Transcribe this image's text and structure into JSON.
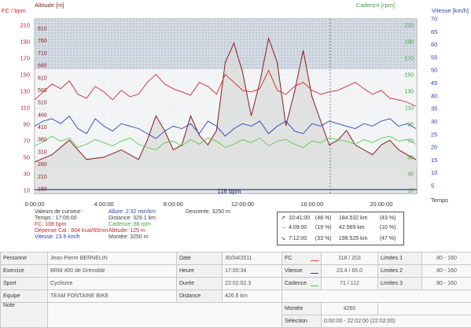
{
  "axes": {
    "left_title": "FC / bpm",
    "left_title2": "Altitude [m]",
    "right_title": "Cadence [rpm]",
    "right_title2": "Vitesse [km/h]",
    "x_title": "Temps",
    "left_ticks": [
      "210",
      "190",
      "170",
      "150",
      "130",
      "110",
      "90",
      "70",
      "50",
      "30",
      "10"
    ],
    "alt_ticks": [
      "810",
      "760",
      "710",
      "660",
      "610",
      "560",
      "510",
      "460",
      "410",
      "360",
      "310",
      "260",
      "210",
      "160"
    ],
    "right_ticks": [
      "70",
      "65",
      "60",
      "55",
      "50",
      "45",
      "40",
      "35",
      "30",
      "25",
      "20",
      "15",
      "10",
      "5"
    ],
    "cad_ticks": [
      "210",
      "190",
      "170",
      "150",
      "130",
      "110",
      "90",
      "70",
      "50",
      "30",
      "10"
    ],
    "x_ticks": [
      "0:00:00",
      "4:00:00",
      "8:00:00",
      "12:00:00",
      "16:00:00",
      "20:00:00"
    ],
    "limit_label": "118 bpm"
  },
  "chart_data": {
    "type": "line",
    "x_unit": "hours",
    "x_range": [
      0,
      22.05
    ],
    "fc_range": [
      0,
      220
    ],
    "speed_range": [
      0,
      70
    ],
    "series": [
      {
        "name": "FC",
        "color": "#d12a2a",
        "x": [
          0,
          0.5,
          1,
          1.5,
          2,
          2.5,
          3,
          3.5,
          4,
          4.5,
          5,
          5.5,
          6,
          6.5,
          7,
          7.5,
          8,
          8.5,
          9,
          9.5,
          10,
          10.5,
          11,
          11.5,
          12,
          12.5,
          13,
          13.5,
          14,
          14.5,
          15,
          15.5,
          16,
          16.5,
          17,
          17.5,
          18,
          18.5,
          19,
          19.5,
          20,
          20.5,
          21,
          21.5,
          22
        ],
        "values": [
          118,
          128,
          138,
          132,
          142,
          125,
          120,
          135,
          128,
          118,
          130,
          122,
          125,
          140,
          150,
          138,
          132,
          128,
          124,
          140,
          135,
          125,
          150,
          140,
          130,
          128,
          132,
          155,
          130,
          125,
          135,
          140,
          130,
          125,
          128,
          130,
          135,
          140,
          132,
          125,
          130,
          120,
          118,
          115,
          110
        ]
      },
      {
        "name": "Vitesse",
        "color": "#2c44b0",
        "x": [
          0,
          0.5,
          1,
          1.5,
          2,
          2.5,
          3,
          3.5,
          4,
          4.5,
          5,
          5.5,
          6,
          6.5,
          7,
          7.5,
          8,
          8.5,
          9,
          9.5,
          10,
          10.5,
          11,
          11.5,
          12,
          12.5,
          13,
          13.5,
          14,
          14.5,
          15,
          15.5,
          16,
          16.5,
          17,
          17.5,
          18,
          18.5,
          19,
          19.5,
          20,
          20.5,
          21,
          21.5,
          22
        ],
        "values": [
          27,
          29,
          30,
          28,
          31,
          26,
          24,
          30,
          27,
          25,
          28,
          27,
          26,
          24,
          22,
          25,
          27,
          26,
          28,
          24,
          29,
          27,
          23,
          26,
          28,
          27,
          29,
          24,
          27,
          29,
          25,
          24,
          28,
          27,
          29,
          28,
          27,
          26,
          28,
          27,
          29,
          30,
          27,
          28,
          26
        ]
      },
      {
        "name": "Cadence",
        "color": "#5cc94a",
        "x": [
          0,
          0.5,
          1,
          1.5,
          2,
          2.5,
          3,
          3.5,
          4,
          4.5,
          5,
          5.5,
          6,
          6.5,
          7,
          7.5,
          8,
          8.5,
          9,
          9.5,
          10,
          10.5,
          11,
          11.5,
          12,
          12.5,
          13,
          13.5,
          14,
          14.5,
          15,
          15.5,
          16,
          16.5,
          17,
          17.5,
          18,
          18.5,
          19,
          19.5,
          20,
          20.5,
          21,
          21.5,
          22
        ],
        "values": [
          60,
          65,
          72,
          66,
          70,
          58,
          62,
          68,
          64,
          60,
          66,
          70,
          62,
          58,
          55,
          64,
          66,
          60,
          68,
          62,
          70,
          66,
          58,
          62,
          68,
          64,
          70,
          60,
          66,
          68,
          62,
          58,
          66,
          64,
          70,
          68,
          66,
          62,
          68,
          64,
          70,
          72,
          66,
          68,
          62
        ]
      },
      {
        "name": "Altitude",
        "color": "#8a1c1c",
        "x": [
          0,
          1,
          2,
          3,
          4,
          5,
          6,
          6.5,
          7,
          7.5,
          8,
          8.5,
          9,
          9.5,
          10,
          10.5,
          11,
          11.5,
          12,
          12.5,
          13,
          13.5,
          14,
          14.5,
          15,
          15.5,
          16,
          16.5,
          17,
          17.5,
          18,
          18.5,
          19,
          19.5,
          20,
          20.5,
          21,
          22
        ],
        "values": [
          230,
          260,
          320,
          240,
          250,
          280,
          240,
          320,
          420,
          360,
          280,
          300,
          420,
          340,
          300,
          360,
          640,
          720,
          600,
          420,
          560,
          740,
          640,
          380,
          520,
          690,
          500,
          400,
          300,
          320,
          360,
          300,
          280,
          260,
          300,
          320,
          280,
          240
        ]
      }
    ]
  },
  "cursor": {
    "title": "Valeurs de curseur:",
    "temps": "Temps : 17:06:00",
    "fc": "FC: 108 bpm",
    "depense": "Dépense Cal.: 804 kcal/60min",
    "vitesse": "Vitesse: 23.6 km/h",
    "allure": "Allure: 2:32 min/km",
    "distance": "Distance: 329.1 km",
    "cadence": "Cadence: 88 rpm",
    "altitude": "Altitude: 125 m",
    "montee": "Montée: 3250 m",
    "descente": "Descente: 3250 m"
  },
  "distribution": [
    {
      "icon": "↗",
      "time": "10:41:00",
      "pct": "(48 %)",
      "dist": "184.532 km",
      "pct2": "(43 %)"
    },
    {
      "icon": "→",
      "time": "4:09:00",
      "pct": "(19 %)",
      "dist": "42.569 km",
      "pct2": "(10 %)"
    },
    {
      "icon": "↘",
      "time": "7:12:00",
      "pct": "(33 %)",
      "dist": "199.525 km",
      "pct2": "(47 %)"
    }
  ],
  "info": {
    "personne_k": "Personne",
    "personne_v": "Jean Pierre BERNELIN",
    "exercice_k": "Exercice",
    "exercice_v": "BRM 400 de Grenoble",
    "sport_k": "Sport",
    "sport_v": "Cyclisme",
    "equipe_k": "Equipe",
    "equipe_v": "TEAM FONTAINE BIKE",
    "note_k": "Note",
    "date_k": "Date",
    "date_v": "30/04/2011",
    "heure_k": "Heure",
    "heure_v": "17:00:34",
    "duree_k": "Durée",
    "duree_v": "22:02:02.3",
    "distance_k": "Distance",
    "distance_v": "426.6 km",
    "fc_k": "FC",
    "fc_v": "118 / 203",
    "vitesse_k": "Vitesse",
    "vitesse_v": "23.4 / 65.0",
    "cadence_k": "Cadence",
    "cadence_v": "71 / 112",
    "montee_k": "Montée",
    "montee_v": "4260",
    "selection_k": "Sélection",
    "selection_v": "0:00:00 - 22:02:00 (22:02:00)",
    "lim1_k": "Limites 1",
    "lim1_v": "80 - 160",
    "lim2_k": "Limites 2",
    "lim2_v": "80 - 160",
    "lim3_k": "Limites 3",
    "lim3_v": "80 - 160",
    "colors": {
      "fc": "#d94a2a",
      "vitesse": "#2c44b0",
      "cadence": "#5cc94a"
    }
  }
}
